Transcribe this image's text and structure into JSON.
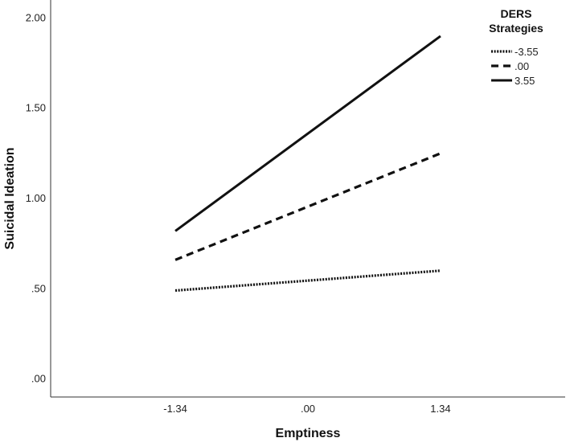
{
  "chart_data": {
    "type": "line",
    "x": [
      -1.34,
      1.34
    ],
    "xticks": [
      "-1.34",
      ".00",
      "1.34"
    ],
    "xtick_values": [
      -1.34,
      0,
      1.34
    ],
    "yticks": [
      ".00",
      ".50",
      "1.00",
      "1.50",
      "2.00"
    ],
    "ytick_values": [
      0,
      0.5,
      1.0,
      1.5,
      2.0
    ],
    "xlabel": "Emptiness",
    "ylabel": "Suicidal Ideation",
    "xlim": [
      -2.6,
      2.6
    ],
    "ylim": [
      -0.1,
      2.1
    ],
    "grid": false,
    "legend_position": "top-right",
    "legend_title_line1": "DERS",
    "legend_title_line2": "Strategies",
    "series": [
      {
        "name": "-3.55",
        "values": [
          0.49,
          0.6
        ],
        "dash": "dotted"
      },
      {
        "name": ".00",
        "values": [
          0.66,
          1.25
        ],
        "dash": "dashed"
      },
      {
        "name": "3.55",
        "values": [
          0.82,
          1.9
        ],
        "dash": "solid"
      }
    ]
  }
}
